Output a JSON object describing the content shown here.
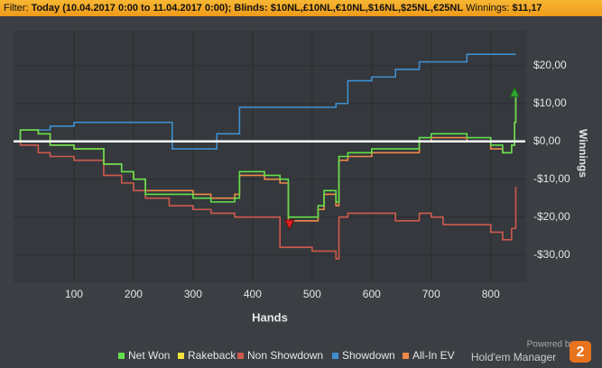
{
  "header": {
    "filter_label": "Filter:",
    "filter_value": "Today (10.04.2017 0:00 to 11.04.2017 0:00); Blinds: $10NL,£10NL,€10NL,$16NL,$25NL,€25NL",
    "winnings_label": "Winnings:",
    "winnings_value": "$11,17"
  },
  "chart_data": {
    "type": "line",
    "step": true,
    "x_label": "Hands",
    "y_label": "Winnings",
    "grid": true,
    "y_axis_side": "right",
    "x": [
      0,
      10,
      40,
      60,
      100,
      150,
      180,
      200,
      220,
      260,
      265,
      300,
      330,
      340,
      370,
      378,
      420,
      446,
      460,
      500,
      510,
      520,
      540,
      545,
      560,
      600,
      640,
      680,
      700,
      720,
      760,
      800,
      820,
      835,
      840,
      842
    ],
    "series": [
      {
        "name": "Net Won",
        "color": "#62e04a",
        "values": [
          0,
          3,
          2,
          -1,
          -2,
          -6,
          -8,
          -10,
          -14,
          -14,
          -14,
          -15,
          -16,
          -16,
          -15,
          -8,
          -9,
          -10,
          -20,
          -20,
          -17,
          -13,
          -16,
          -4,
          -3,
          -2,
          -2,
          1,
          2,
          2,
          1,
          -1,
          -3,
          -1,
          5,
          12
        ]
      },
      {
        "name": "Rakeback",
        "color": "#f2e23a",
        "values": [
          0,
          0,
          0,
          0,
          0,
          0,
          0,
          0,
          0,
          0,
          0,
          0,
          0,
          0,
          0,
          0,
          0,
          0,
          0,
          0,
          0,
          0,
          0,
          0,
          0,
          0,
          0,
          0,
          0,
          0,
          0,
          0,
          0,
          0,
          0,
          0
        ]
      },
      {
        "name": "Non Showdown",
        "color": "#cf5a4e",
        "values": [
          0,
          -1,
          -3,
          -4,
          -5,
          -9,
          -11,
          -13,
          -15,
          -17,
          -17,
          -18,
          -19,
          -19,
          -20,
          -20,
          -20,
          -28,
          -28,
          -29,
          -29,
          -29,
          -31,
          -20,
          -19,
          -19,
          -21,
          -19,
          -20,
          -22,
          -22,
          -24,
          -26,
          -23,
          -23,
          -12
        ]
      },
      {
        "name": "Showdown",
        "color": "#3f8fd0",
        "values": [
          0,
          3,
          3,
          4,
          5,
          5,
          5,
          5,
          5,
          5,
          -2,
          -2,
          -2,
          2,
          2,
          9,
          9,
          9,
          9,
          9,
          9,
          9,
          10,
          10,
          16,
          17,
          19,
          21,
          21,
          21,
          23,
          23,
          23,
          23,
          23,
          23
        ]
      },
      {
        "name": "All-In EV",
        "color": "#ee8a4a",
        "values": [
          0,
          3,
          2,
          -1,
          -2,
          -6,
          -8,
          -10,
          -13,
          -13,
          -13,
          -14,
          -15,
          -15,
          -14,
          -9,
          -10,
          -11,
          -21,
          -21,
          -18,
          -14,
          -17,
          -5,
          -4,
          -3,
          -3,
          0,
          1,
          1,
          0,
          -2,
          -3,
          -1,
          5,
          12
        ]
      }
    ],
    "peak": {
      "x": 840,
      "value": 13,
      "color": "#2fa82f"
    },
    "trough": {
      "x": 462,
      "value": -22,
      "color": "#e02020"
    },
    "xlim": [
      0,
      858
    ],
    "xticks": [
      100,
      200,
      300,
      400,
      500,
      600,
      700,
      800
    ],
    "ylim": [
      -37,
      29
    ],
    "yticks": [
      {
        "value": 20,
        "label": "$20,00"
      },
      {
        "value": 10,
        "label": "$10,00"
      },
      {
        "value": 0,
        "label": "$0,00"
      },
      {
        "value": -10,
        "label": "-$10,00"
      },
      {
        "value": -20,
        "label": "-$20,00"
      },
      {
        "value": -30,
        "label": "-$30,00"
      }
    ]
  },
  "branding": {
    "powered_by": "Powered by",
    "product": "Hold'em Manager",
    "version": "2"
  }
}
